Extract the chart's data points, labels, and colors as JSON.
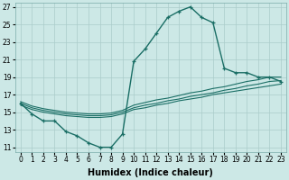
{
  "xlabel": "Humidex (Indice chaleur)",
  "xlim": [
    -0.5,
    23.5
  ],
  "ylim": [
    10.5,
    27.5
  ],
  "xticks": [
    0,
    1,
    2,
    3,
    4,
    5,
    6,
    7,
    8,
    9,
    10,
    11,
    12,
    13,
    14,
    15,
    16,
    17,
    18,
    19,
    20,
    21,
    22,
    23
  ],
  "yticks": [
    11,
    13,
    15,
    17,
    19,
    21,
    23,
    25,
    27
  ],
  "bg_color": "#cce8e6",
  "grid_color": "#aaccca",
  "line_color": "#1a6e65",
  "curve_main_x": [
    0,
    1,
    2,
    3,
    4,
    5,
    6,
    7,
    8,
    9,
    10,
    11,
    12,
    13,
    14,
    15,
    16,
    17,
    18,
    19,
    20,
    21,
    22,
    23
  ],
  "curve_main_y": [
    16.0,
    14.8,
    14.0,
    14.0,
    12.8,
    12.3,
    11.5,
    11.0,
    11.0,
    12.5,
    20.8,
    22.2,
    24.0,
    25.8,
    26.5,
    27.0,
    25.8,
    25.2,
    20.0,
    19.5,
    19.5,
    19.0,
    19.0,
    18.5
  ],
  "flat1_x": [
    0,
    1,
    2,
    3,
    4,
    5,
    6,
    7,
    8,
    9,
    10,
    11,
    12,
    13,
    14,
    15,
    16,
    17,
    18,
    19,
    20,
    21,
    22,
    23
  ],
  "flat1_y": [
    15.8,
    15.3,
    15.0,
    14.8,
    14.6,
    14.5,
    14.4,
    14.4,
    14.5,
    14.8,
    15.3,
    15.5,
    15.8,
    16.0,
    16.3,
    16.5,
    16.7,
    17.0,
    17.2,
    17.4,
    17.6,
    17.8,
    18.0,
    18.2
  ],
  "flat2_x": [
    0,
    1,
    2,
    3,
    4,
    5,
    6,
    7,
    8,
    9,
    10,
    11,
    12,
    13,
    14,
    15,
    16,
    17,
    18,
    19,
    20,
    21,
    22,
    23
  ],
  "flat2_y": [
    16.0,
    15.5,
    15.2,
    15.0,
    14.8,
    14.7,
    14.6,
    14.6,
    14.7,
    15.0,
    15.5,
    15.8,
    16.0,
    16.3,
    16.5,
    16.8,
    17.0,
    17.2,
    17.5,
    17.7,
    18.0,
    18.2,
    18.5,
    18.6
  ],
  "flat3_x": [
    0,
    1,
    2,
    3,
    4,
    5,
    6,
    7,
    8,
    9,
    10,
    11,
    12,
    13,
    14,
    15,
    16,
    17,
    18,
    19,
    20,
    21,
    22,
    23
  ],
  "flat3_y": [
    16.2,
    15.7,
    15.4,
    15.2,
    15.0,
    14.9,
    14.8,
    14.8,
    14.9,
    15.2,
    15.8,
    16.1,
    16.4,
    16.6,
    16.9,
    17.2,
    17.4,
    17.7,
    17.9,
    18.2,
    18.5,
    18.7,
    19.0,
    19.0
  ],
  "axis_fontsize": 7,
  "tick_fontsize": 5.5
}
